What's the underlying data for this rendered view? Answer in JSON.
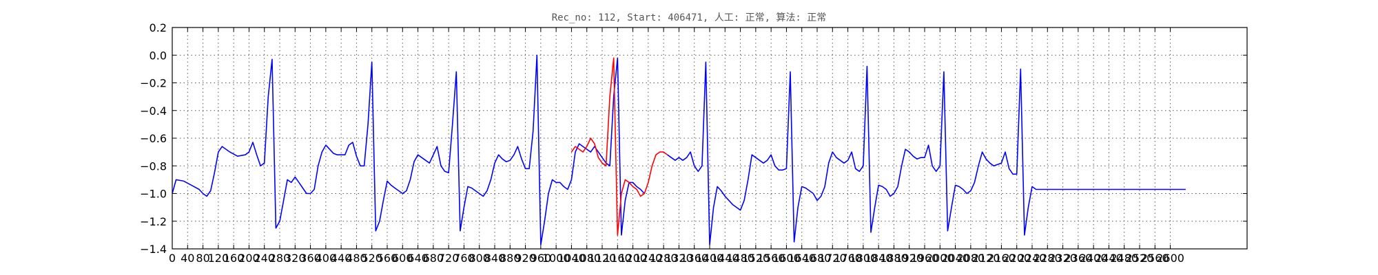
{
  "chart_data": {
    "type": "line",
    "title": "Rec_no: 112, Start: 406471, 人工: 正常, 算法: 正常",
    "xlabel": "",
    "ylabel": "",
    "xlim": [
      0,
      2800
    ],
    "ylim": [
      -1.4,
      0.2
    ],
    "grid": true,
    "yticks": [
      0.2,
      0.0,
      -0.2,
      -0.4,
      -0.6,
      -0.8,
      -1.0,
      -1.2,
      -1.4
    ],
    "ytick_labels": [
      "0.2",
      "0.0",
      "−0.2",
      "−0.4",
      "−0.6",
      "−0.8",
      "−1.0",
      "−1.2",
      "−1.4"
    ],
    "xticks": [
      0,
      40,
      80,
      120,
      160,
      200,
      240,
      280,
      320,
      360,
      400,
      440,
      480,
      520,
      560,
      600,
      640,
      680,
      720,
      760,
      800,
      840,
      880,
      920,
      960,
      1000,
      1040,
      1080,
      1120,
      1160,
      1200,
      1240,
      1280,
      1320,
      1360,
      1400,
      1440,
      1480,
      1520,
      1560,
      1600,
      1640,
      1680,
      1720,
      1760,
      1800,
      1840,
      1880,
      1920,
      1960,
      2000,
      2040,
      2080,
      2120,
      2160,
      2200,
      2240,
      2280,
      2320,
      2360,
      2400,
      2440,
      2480,
      2520,
      2560,
      2600
    ],
    "xtick_labels": [
      "0",
      "40",
      "80",
      "120",
      "160",
      "200",
      "240",
      "280",
      "320",
      "360",
      "400",
      "440",
      "480",
      "520",
      "560",
      "600",
      "640",
      "680",
      "720",
      "760",
      "800",
      "840",
      "880",
      "920",
      "960",
      "1000",
      "1040",
      "1080",
      "1120",
      "1160",
      "1200",
      "1240",
      "1280",
      "1320",
      "1360",
      "1400",
      "1440",
      "1480",
      "1520",
      "1560",
      "1600",
      "1640",
      "1680",
      "1720",
      "1760",
      "1800",
      "1840",
      "1880",
      "1920",
      "1960",
      "2000",
      "2040",
      "2080",
      "2120",
      "2160",
      "2200",
      "2240",
      "2280",
      "2320",
      "2360",
      "2400",
      "2440",
      "2480",
      "2520",
      "2560",
      "2600"
    ],
    "series": [
      {
        "color": "#0000ff",
        "x": [
          0,
          10,
          30,
          50,
          70,
          80,
          90,
          100,
          110,
          120,
          130,
          150,
          170,
          190,
          200,
          210,
          220,
          230,
          240,
          250,
          260,
          270,
          280,
          290,
          300,
          310,
          320,
          330,
          340,
          350,
          360,
          370,
          380,
          390,
          400,
          410,
          420,
          430,
          440,
          450,
          460,
          470,
          480,
          490,
          500,
          510,
          520,
          530,
          540,
          550,
          560,
          570,
          580,
          590,
          600,
          610,
          620,
          630,
          640,
          650,
          660,
          670,
          680,
          690,
          700,
          710,
          720,
          730,
          740,
          750,
          760,
          770,
          780,
          790,
          800,
          810,
          820,
          830,
          840,
          850,
          860,
          870,
          880,
          890,
          900,
          910,
          920,
          930,
          940,
          950,
          960,
          970,
          980,
          990,
          1000,
          1010,
          1020,
          1030,
          1040,
          1050,
          1060,
          1070,
          1080,
          1090,
          1100,
          1110,
          1120,
          1130,
          1140,
          1150,
          1160,
          1170,
          1180,
          1190,
          1200,
          1210,
          1220,
          1230
        ],
        "y": [
          -1.0,
          -0.9,
          -0.91,
          -0.94,
          -0.97,
          -1.0,
          -1.02,
          -0.98,
          -0.85,
          -0.7,
          -0.66,
          -0.7,
          -0.73,
          -0.72,
          -0.7,
          -0.63,
          -0.72,
          -0.8,
          -0.78,
          -0.3,
          -0.03,
          -1.25,
          -1.2,
          -1.05,
          -0.9,
          -0.92,
          -0.88,
          -0.92,
          -0.96,
          -1.0,
          -1.0,
          -0.97,
          -0.8,
          -0.7,
          -0.65,
          -0.68,
          -0.71,
          -0.72,
          -0.72,
          -0.72,
          -0.65,
          -0.63,
          -0.73,
          -0.8,
          -0.8,
          -0.5,
          -0.05,
          -1.27,
          -1.2,
          -1.05,
          -0.91,
          -0.94,
          -0.96,
          -0.98,
          -1.0,
          -0.98,
          -0.9,
          -0.77,
          -0.72,
          -0.74,
          -0.76,
          -0.78,
          -0.72,
          -0.66,
          -0.8,
          -0.84,
          -0.85,
          -0.5,
          -0.12,
          -1.27,
          -1.1,
          -0.95,
          -0.96,
          -0.98,
          -1.0,
          -1.02,
          -0.98,
          -0.9,
          -0.78,
          -0.72,
          -0.75,
          -0.77,
          -0.76,
          -0.72,
          -0.66,
          -0.75,
          -0.82,
          -0.82,
          -0.55,
          0.0,
          -1.37,
          -1.2,
          -1.0,
          -0.9,
          -0.92,
          -0.92,
          -0.95,
          -0.97,
          -0.9,
          -0.7,
          -0.64,
          -0.66,
          -0.68,
          -0.7,
          -0.66,
          -0.7,
          -0.74,
          -0.78,
          -0.8,
          -0.3,
          -0.02,
          -1.3,
          -1.05,
          -0.92,
          -0.92,
          -0.95,
          -0.97,
          -1.0
        ]
      },
      {
        "color": "#ff0000",
        "x": [
          1040,
          1050,
          1060,
          1070,
          1080,
          1090,
          1100,
          1110,
          1120,
          1130,
          1140,
          1150,
          1160,
          1170,
          1180,
          1190,
          1200,
          1210,
          1220,
          1230,
          1240,
          1250,
          1260,
          1270,
          1280,
          1290
        ],
        "y": [
          -0.7,
          -0.66,
          -0.68,
          -0.7,
          -0.66,
          -0.6,
          -0.64,
          -0.74,
          -0.78,
          -0.8,
          -0.3,
          -0.02,
          -1.3,
          -1.0,
          -0.9,
          -0.92,
          -0.95,
          -0.97,
          -1.02,
          -1.0,
          -0.92,
          -0.8,
          -0.72,
          -0.7,
          -0.7,
          -0.72
        ]
      },
      {
        "color": "#0000ff",
        "x": [
          1290,
          1300,
          1310,
          1320,
          1330,
          1340,
          1350,
          1360,
          1370,
          1380,
          1390,
          1400,
          1410,
          1420,
          1430,
          1440,
          1450,
          1460,
          1470,
          1480,
          1490,
          1500,
          1510,
          1520,
          1530,
          1540,
          1550,
          1560,
          1570,
          1580,
          1590,
          1600,
          1610,
          1620,
          1630,
          1640,
          1650,
          1660,
          1670,
          1680,
          1690,
          1700,
          1710,
          1720,
          1730,
          1740,
          1750,
          1760,
          1770,
          1780,
          1790,
          1800,
          1810,
          1820,
          1830,
          1840,
          1850,
          1860,
          1870,
          1880,
          1890,
          1900,
          1910,
          1920,
          1930,
          1940,
          1950,
          1960,
          1970,
          1980,
          1990,
          2000,
          2010,
          2020,
          2030,
          2040,
          2050,
          2060,
          2070,
          2080,
          2090,
          2100,
          2110,
          2120,
          2130,
          2140,
          2150,
          2160,
          2170,
          2180,
          2190,
          2200,
          2210,
          2220,
          2230,
          2240,
          2250,
          2260,
          2270,
          2280,
          2290,
          2300,
          2310,
          2320,
          2330,
          2340,
          2350,
          2360,
          2380,
          2400,
          2420,
          2440,
          2460,
          2480,
          2500,
          2520,
          2540,
          2560,
          2570,
          2580,
          2590,
          2600,
          2610,
          2620,
          2630,
          2640
        ],
        "y": [
          -0.72,
          -0.74,
          -0.76,
          -0.74,
          -0.76,
          -0.74,
          -0.7,
          -0.8,
          -0.84,
          -0.8,
          -0.05,
          -1.37,
          -1.1,
          -0.95,
          -0.98,
          -1.02,
          -1.05,
          -1.08,
          -1.1,
          -1.12,
          -1.05,
          -0.9,
          -0.72,
          -0.74,
          -0.76,
          -0.78,
          -0.76,
          -0.72,
          -0.8,
          -0.83,
          -0.83,
          -0.82,
          -0.12,
          -1.35,
          -1.1,
          -0.95,
          -0.96,
          -0.98,
          -1.0,
          -1.05,
          -1.02,
          -0.95,
          -0.78,
          -0.7,
          -0.74,
          -0.76,
          -0.78,
          -0.76,
          -0.7,
          -0.82,
          -0.84,
          -0.8,
          -0.08,
          -1.28,
          -1.1,
          -0.94,
          -0.95,
          -0.97,
          -1.02,
          -1.0,
          -0.95,
          -0.8,
          -0.68,
          -0.7,
          -0.73,
          -0.75,
          -0.74,
          -0.74,
          -0.65,
          -0.8,
          -0.84,
          -0.8,
          -0.12,
          -1.27,
          -1.1,
          -0.94,
          -0.95,
          -0.97,
          -1.0,
          -0.98,
          -0.92,
          -0.8,
          -0.7,
          -0.75,
          -0.78,
          -0.8,
          -0.79,
          -0.78,
          -0.7,
          -0.82,
          -0.86,
          -0.86,
          -0.1,
          -1.3,
          -1.1,
          -0.95,
          -0.97,
          -0.97,
          -0.97,
          -0.97,
          -0.97,
          -0.97,
          -0.97,
          -0.97,
          -0.97,
          -0.97,
          -0.97,
          -0.97,
          -0.97,
          -0.97,
          -0.97,
          -0.97,
          -0.97,
          -0.97,
          -0.97,
          -0.97,
          -0.97,
          -0.97,
          -0.97,
          -0.97,
          -0.97,
          -0.97,
          -0.97,
          -0.97,
          -0.97,
          -0.97
        ]
      }
    ]
  }
}
